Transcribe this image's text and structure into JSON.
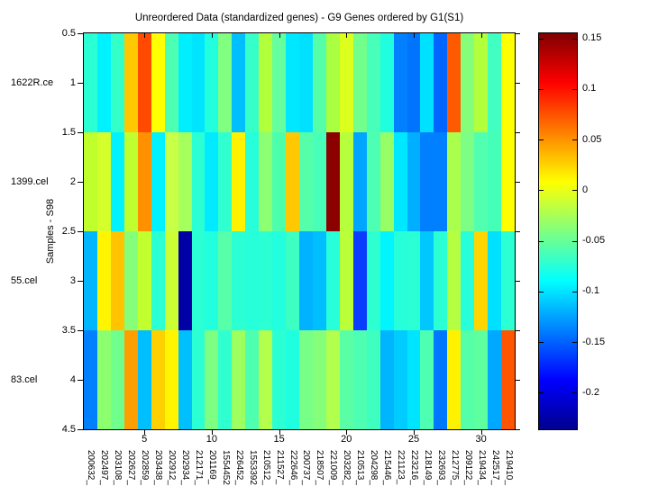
{
  "title": "Unreordered Data (standardized genes) - G9 Genes ordered by G1(S1)",
  "y_axis": {
    "label": "Samples - S98",
    "ticks": [
      "0.5",
      "1",
      "1.5",
      "2",
      "2.5",
      "3",
      "3.5",
      "4",
      "4.5"
    ],
    "sample_labels": [
      "1622R.ce",
      "1399.cel",
      "55.cel",
      "83.cel"
    ]
  },
  "x_axis": {
    "tick_labels": [
      "5",
      "10",
      "15",
      "20",
      "25",
      "30"
    ],
    "tick_cols": [
      5,
      10,
      15,
      20,
      25,
      30
    ]
  },
  "colorbar": {
    "tick_labels": [
      "0.15",
      "0.1",
      "0.05",
      "0",
      "-0.05",
      "-0.1",
      "-0.15",
      "-0.2"
    ],
    "tick_values": [
      0.15,
      0.1,
      0.05,
      0,
      -0.05,
      -0.1,
      -0.15,
      -0.2
    ],
    "vmax": 0.155,
    "vmin": -0.236,
    "colormap": "jet"
  },
  "chart_data": {
    "type": "heatmap",
    "title": "Unreordered Data (standardized genes) - G9 Genes ordered by G1(S1)",
    "xlabel": "",
    "ylabel": "Samples - S98",
    "rows": [
      "1622R.ce",
      "1399.cel",
      "55.cel",
      "83.cel"
    ],
    "columns": [
      "200632_",
      "202497_",
      "203108_",
      "202627_",
      "202859_",
      "203438_",
      "202912_",
      "202934_",
      "212171_",
      "201169_",
      "1554452",
      "226452_",
      "1553392",
      "210512_",
      "211527_",
      "222646_",
      "200737_",
      "218507_",
      "221009_",
      "203282_",
      "210513_",
      "204298_",
      "215446_",
      "221123_",
      "223216_",
      "218149_",
      "232693_",
      "212775_",
      "209122_",
      "219434_",
      "242517_",
      "219410_"
    ],
    "colorbar_range": [
      -0.236,
      0.155
    ],
    "values": [
      [
        -0.056,
        -0.07,
        -0.054,
        0.048,
        0.085,
        0.026,
        -0.038,
        -0.071,
        -0.077,
        -0.06,
        -0.016,
        -0.091,
        -0.05,
        0.003,
        -0.032,
        -0.076,
        -0.079,
        -0.037,
        0.004,
        0.013,
        -0.019,
        -0.046,
        -0.063,
        -0.118,
        -0.121,
        -0.079,
        -0.125,
        0.082,
        -0.016,
        0.003,
        -0.047,
        0.026
      ],
      [
        0.006,
        0.012,
        -0.07,
        0.006,
        0.068,
        -0.07,
        0.009,
        -0.005,
        -0.056,
        -0.074,
        -0.054,
        0.026,
        -0.058,
        -0.017,
        -0.039,
        0.048,
        -0.037,
        -0.044,
        0.143,
        0.003,
        -0.101,
        -0.039,
        -0.012,
        -0.076,
        -0.097,
        -0.118,
        -0.117,
        0.0,
        -0.017,
        -0.038,
        -0.045,
        0.026
      ],
      [
        -0.094,
        0.027,
        0.05,
        -0.016,
        0.007,
        -0.056,
        0.01,
        -0.217,
        -0.056,
        -0.059,
        -0.035,
        -0.055,
        -0.058,
        -0.056,
        -0.06,
        -0.048,
        -0.096,
        -0.091,
        -0.058,
        0.004,
        -0.153,
        -0.054,
        -0.069,
        -0.058,
        -0.056,
        -0.088,
        -0.056,
        0.003,
        -0.058,
        0.045,
        -0.079,
        -0.057
      ],
      [
        -0.118,
        -0.016,
        -0.02,
        0.065,
        -0.091,
        0.047,
        0.027,
        -0.09,
        -0.056,
        -0.017,
        -0.053,
        -0.008,
        -0.038,
        0.002,
        -0.056,
        -0.062,
        -0.018,
        -0.015,
        0.002,
        -0.033,
        -0.039,
        -0.047,
        -0.095,
        -0.086,
        -0.077,
        -0.039,
        -0.12,
        0.026,
        -0.037,
        -0.03,
        -0.099,
        0.083
      ]
    ],
    "cell_colors": [
      [
        "#2BFFD4",
        "#00F2FF",
        "#33FFC9",
        "#FFC800",
        "#FF4A00",
        "#FFFF00",
        "#4DFFB2",
        "#00EFFF",
        "#00E5FF",
        "#21FFDE",
        "#80FF80",
        "#00BFFF",
        "#36FFC9",
        "#B2FF3C",
        "#66FFA0",
        "#00E8FF",
        "#00E0FF",
        "#55FFAA",
        "#AAFF40",
        "#DCFF1E",
        "#73FF8C",
        "#47FFB8",
        "#1FFFE0",
        "#0080FF",
        "#0073FF",
        "#00E0FF",
        "#0066FF",
        "#FF5A00",
        "#85FF7A",
        "#B2FF3C",
        "#40FFC0",
        "#FFFF00"
      ],
      [
        "#BFFF2B",
        "#D4FF2B",
        "#00F2FF",
        "#BFFF30",
        "#FF9100",
        "#00F2FF",
        "#C8FF47",
        "#A5FF5C",
        "#2BFFD4",
        "#00EBFF",
        "#30FFCF",
        "#FFF200",
        "#26FFD9",
        "#8CFF73",
        "#4DFFAD",
        "#FFC800",
        "#55FFAA",
        "#47FFB8",
        "#8C0000",
        "#B7FF3C",
        "#00A5FF",
        "#4DFFB2",
        "#96FF66",
        "#00E8FF",
        "#00AFFF",
        "#0080FF",
        "#0080FF",
        "#AAFF4D",
        "#7DFF85",
        "#50FFAF",
        "#44FFB8",
        "#FFFF00"
      ],
      [
        "#00B7FF",
        "#FFF500",
        "#FFC300",
        "#85FF7A",
        "#C1FF2E",
        "#2BFFD4",
        "#CCFF33",
        "#0000A6",
        "#2BFFD4",
        "#21FFDE",
        "#57FFA8",
        "#2BFFD4",
        "#26FFD9",
        "#2BFFD4",
        "#21FFDE",
        "#3DFFC2",
        "#00B2FF",
        "#00BFFF",
        "#26FFD9",
        "#BAFF38",
        "#0A3CFF",
        "#2EFFD1",
        "#00F5FF",
        "#26FFD9",
        "#2BFFD4",
        "#00C8FF",
        "#2BFFD4",
        "#B5FF42",
        "#26FFD9",
        "#FFD500",
        "#00E0FF",
        "#2BFFD4"
      ],
      [
        "#0080FF",
        "#8CFF70",
        "#70FF8C",
        "#FF9E00",
        "#00BFFF",
        "#FFD000",
        "#FFF500",
        "#00BFFF",
        "#2BFFD4",
        "#7DFF82",
        "#30FFCF",
        "#9EFF61",
        "#4FFFB0",
        "#B4FF4B",
        "#2BFFD4",
        "#1FFFE0",
        "#77FF88",
        "#85FF7A",
        "#B2FF4D",
        "#5AFFA5",
        "#4DFFB2",
        "#3FFFC0",
        "#00B5FF",
        "#00CCFF",
        "#00E5FF",
        "#4DFFB2",
        "#0077FF",
        "#FFF200",
        "#55FFAA",
        "#5EFF9E",
        "#00A8FF",
        "#FF5500"
      ]
    ]
  }
}
